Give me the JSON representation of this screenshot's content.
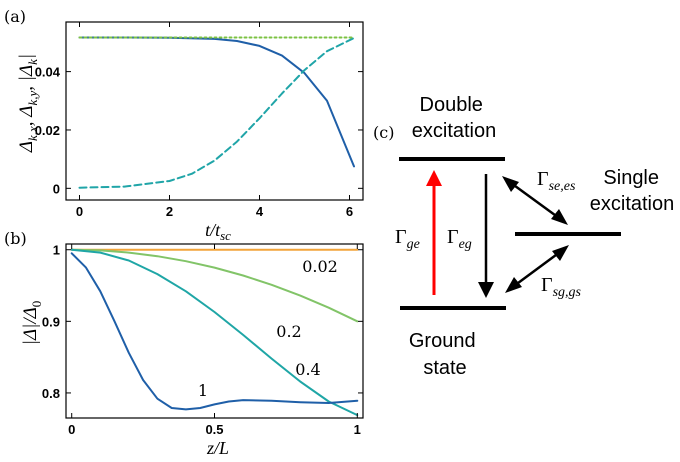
{
  "chart_data": [
    {
      "panel_label": "(a)",
      "type": "line",
      "ylabel": "Δk,x, Δk,y, |Δk|",
      "xlabel": "t/tsc",
      "xlim": [
        -0.3,
        6.3
      ],
      "ylim": [
        -0.004,
        0.057
      ],
      "xticks": [
        0,
        2,
        4,
        6
      ],
      "yticks": [
        0,
        0.02,
        0.04
      ],
      "ytick_labels": [
        "0",
        "0.02",
        "0.04"
      ],
      "grid": false,
      "series": [
        {
          "color": "#1f5fa8",
          "style": "solid",
          "x": [
            0,
            1,
            2,
            3,
            3.5,
            4,
            4.5,
            5,
            5.5,
            6.1
          ],
          "y": [
            0.0517,
            0.0517,
            0.0516,
            0.0512,
            0.0505,
            0.0488,
            0.0455,
            0.0395,
            0.03,
            0.0075
          ]
        },
        {
          "color": "#20a5a8",
          "style": "dashed",
          "x": [
            0,
            1,
            2,
            2.5,
            3,
            3.5,
            4,
            4.5,
            5,
            5.5,
            6.1
          ],
          "y": [
            0.0002,
            0.0006,
            0.0025,
            0.005,
            0.0095,
            0.016,
            0.024,
            0.0325,
            0.0405,
            0.047,
            0.0515
          ]
        },
        {
          "color": "#7cc243",
          "style": "dotted",
          "x": [
            0,
            6.1
          ],
          "y": [
            0.0517,
            0.0517
          ]
        }
      ]
    },
    {
      "panel_label": "(b)",
      "type": "line",
      "ylabel": "|Δ|/Δ0",
      "xlabel": "z/L",
      "xlim": [
        -0.02,
        1.02
      ],
      "ylim": [
        0.765,
        1.008
      ],
      "xticks": [
        0,
        0.5,
        1
      ],
      "xtick_labels": [
        "0",
        "0.5",
        "1"
      ],
      "yticks": [
        0.8,
        0.9,
        1
      ],
      "ytick_labels": [
        "0.8",
        "0.9",
        "1"
      ],
      "grid": false,
      "series": [
        {
          "name": "0.02",
          "color": "#f2a43a",
          "x": [
            0,
            1
          ],
          "y": [
            1.0,
            1.0
          ]
        },
        {
          "name": "0.2",
          "color": "#82c468",
          "x": [
            0,
            0.1,
            0.2,
            0.3,
            0.4,
            0.5,
            0.6,
            0.7,
            0.8,
            0.9,
            1.0
          ],
          "y": [
            1.0,
            0.999,
            0.996,
            0.991,
            0.984,
            0.975,
            0.964,
            0.951,
            0.936,
            0.919,
            0.9
          ]
        },
        {
          "name": "0.4",
          "color": "#1fa6a6",
          "x": [
            0,
            0.1,
            0.2,
            0.3,
            0.4,
            0.5,
            0.6,
            0.7,
            0.8,
            0.9,
            1.0
          ],
          "y": [
            1.0,
            0.996,
            0.985,
            0.966,
            0.942,
            0.913,
            0.881,
            0.848,
            0.816,
            0.788,
            0.769
          ]
        },
        {
          "name": "1",
          "color": "#1f5fa8",
          "x": [
            0,
            0.05,
            0.1,
            0.15,
            0.2,
            0.25,
            0.3,
            0.35,
            0.4,
            0.45,
            0.5,
            0.55,
            0.6,
            0.7,
            0.8,
            0.9,
            1.0
          ],
          "y": [
            0.995,
            0.975,
            0.942,
            0.9,
            0.856,
            0.818,
            0.792,
            0.779,
            0.777,
            0.779,
            0.784,
            0.788,
            0.79,
            0.789,
            0.787,
            0.786,
            0.789
          ]
        }
      ]
    }
  ],
  "diagram": {
    "panel_label": "(c)",
    "states": {
      "double": [
        "Double",
        "excitation"
      ],
      "single": [
        "Single",
        "excitation"
      ],
      "ground": [
        "Ground",
        "state"
      ]
    },
    "rates": {
      "ge": {
        "main": "Γ",
        "sub": "ge"
      },
      "eg": {
        "main": "Γ",
        "sub": "eg"
      },
      "se_es": {
        "main": "Γ",
        "sub": "se,es"
      },
      "sg_gs": {
        "main": "Γ",
        "sub": "sg,gs"
      }
    },
    "colors": {
      "pump_arrow": "#ff0000",
      "arrow": "#000000",
      "level": "#000000"
    }
  }
}
